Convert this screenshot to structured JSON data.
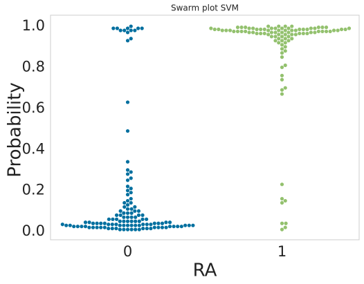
{
  "chart_data": {
    "type": "swarm",
    "title": "Swarm plot SVM",
    "xlabel": "RA",
    "ylabel": "Probability",
    "categories": [
      "0",
      "1"
    ],
    "colors": [
      "#006f9f",
      "#93c16e"
    ],
    "values": [
      [
        0.99,
        0.99,
        0.98,
        0.98,
        0.99,
        1.0,
        0.99,
        0.98,
        0.97,
        0.99,
        0.98,
        0.93,
        0.94,
        0.63,
        0.49,
        0.34,
        0.3,
        0.29,
        0.28,
        0.26,
        0.25,
        0.22,
        0.21,
        0.2,
        0.19,
        0.18,
        0.16,
        0.15,
        0.14,
        0.14,
        0.13,
        0.12,
        0.12,
        0.11,
        0.11,
        0.1,
        0.1,
        0.1,
        0.09,
        0.09,
        0.09,
        0.08,
        0.08,
        0.08,
        0.08,
        0.07,
        0.07,
        0.07,
        0.07,
        0.06,
        0.06,
        0.06,
        0.06,
        0.06,
        0.05,
        0.05,
        0.05,
        0.05,
        0.05,
        0.05,
        0.045,
        0.045,
        0.045,
        0.045,
        0.04,
        0.04,
        0.04,
        0.04,
        0.04,
        0.04,
        0.04,
        0.035,
        0.035,
        0.035,
        0.035,
        0.035,
        0.035,
        0.035,
        0.03,
        0.03,
        0.03,
        0.03,
        0.03,
        0.03,
        0.03,
        0.03,
        0.03,
        0.03,
        0.03,
        0.025,
        0.025,
        0.025,
        0.025,
        0.025,
        0.025,
        0.025,
        0.025,
        0.02,
        0.02,
        0.02,
        0.02,
        0.02,
        0.02,
        0.02,
        0.02,
        0.02,
        0.015,
        0.015,
        0.015,
        0.015,
        0.015,
        0.015,
        0.01,
        0.01,
        0.01,
        0.01,
        0.01,
        0.01
      ],
      [
        0.01,
        0.02,
        0.04,
        0.04,
        0.14,
        0.15,
        0.16,
        0.23,
        0.67,
        0.69,
        0.7,
        0.74,
        0.76,
        0.8,
        0.81,
        0.85,
        0.87,
        0.88,
        0.89,
        0.9,
        0.91,
        0.92,
        0.92,
        0.93,
        0.93,
        0.93,
        0.94,
        0.94,
        0.94,
        0.95,
        0.95,
        0.95,
        0.95,
        0.96,
        0.96,
        0.96,
        0.96,
        0.96,
        0.965,
        0.965,
        0.965,
        0.965,
        0.965,
        0.965,
        0.97,
        0.97,
        0.97,
        0.97,
        0.97,
        0.97,
        0.97,
        0.97,
        0.975,
        0.975,
        0.975,
        0.975,
        0.975,
        0.975,
        0.975,
        0.975,
        0.98,
        0.98,
        0.98,
        0.98,
        0.98,
        0.98,
        0.98,
        0.98,
        0.98,
        0.98,
        0.985,
        0.985,
        0.985,
        0.985,
        0.985,
        0.985,
        0.985,
        0.985,
        0.985,
        0.985,
        0.99,
        0.99,
        0.99,
        0.99,
        0.99,
        0.99,
        0.99,
        0.99,
        0.99,
        0.99,
        0.995,
        0.995,
        0.995,
        0.995,
        0.995,
        0.995,
        1.0,
        1.0,
        1.0,
        1.0
      ]
    ],
    "xlim": [
      -0.5,
      1.5
    ],
    "ylim": [
      -0.04,
      1.054
    ],
    "yticks": [
      {
        "value": 0,
        "label": "0.0"
      },
      0.2,
      0.4,
      0.6,
      0.8,
      {
        "value": 1,
        "label": "1.0"
      }
    ],
    "grid": false
  }
}
